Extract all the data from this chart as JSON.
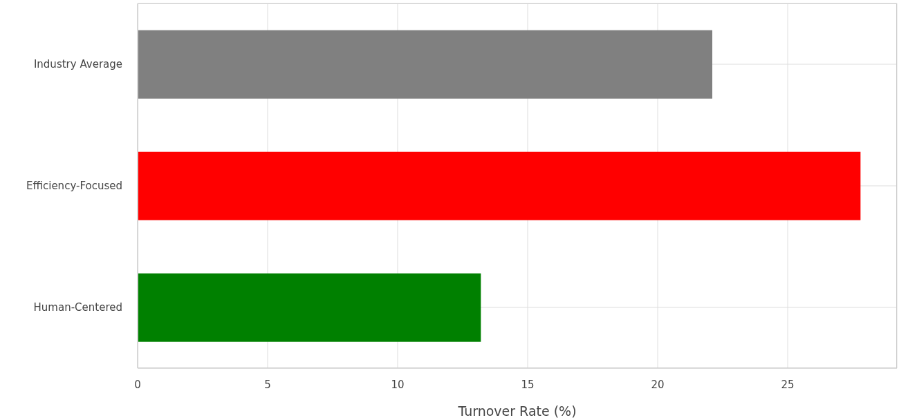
{
  "chart_data": {
    "type": "bar",
    "orientation": "horizontal",
    "xlabel": "Turnover Rate (%)",
    "categories": [
      "Industry Average",
      "Efficiency-Focused",
      "Human-Centered"
    ],
    "values": [
      22.1,
      27.8,
      13.2
    ],
    "colors": [
      "#808080",
      "#ff0000",
      "#008000"
    ],
    "xlim": [
      0,
      29.2
    ],
    "xticks": [
      0,
      5,
      10,
      15,
      20,
      25
    ],
    "grid": true
  }
}
